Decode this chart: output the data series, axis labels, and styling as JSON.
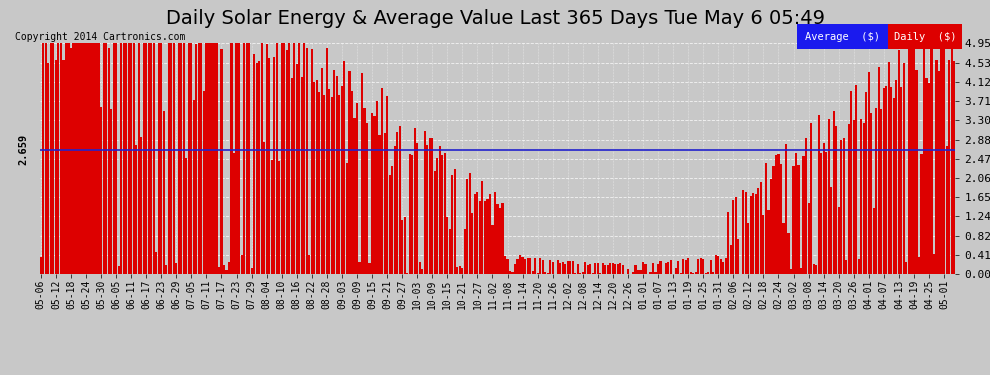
{
  "title": "Daily Solar Energy & Average Value Last 365 Days Tue May 6 05:49",
  "copyright": "Copyright 2014 Cartronics.com",
  "average_value": 2.659,
  "bar_color": "#dd0000",
  "average_line_color": "#2222cc",
  "ymax": 4.95,
  "ymin": 0.0,
  "yticks": [
    0.0,
    0.41,
    0.82,
    1.24,
    1.65,
    2.06,
    2.47,
    2.88,
    3.3,
    3.71,
    4.12,
    4.53,
    4.95
  ],
  "legend_avg_bg": "#1a1aee",
  "legend_daily_bg": "#dd0000",
  "legend_text_color": "#ffffff",
  "background_color": "#c8c8c8",
  "plot_bg_color": "#c8c8c8",
  "title_fontsize": 14,
  "xlabel_dates": [
    "05-06",
    "05-12",
    "05-18",
    "05-24",
    "05-30",
    "06-05",
    "06-11",
    "06-17",
    "06-23",
    "06-29",
    "07-05",
    "07-11",
    "07-17",
    "07-23",
    "07-29",
    "08-04",
    "08-10",
    "08-16",
    "08-22",
    "08-28",
    "09-03",
    "09-09",
    "09-15",
    "09-21",
    "09-27",
    "10-03",
    "10-09",
    "10-15",
    "10-21",
    "10-27",
    "11-02",
    "11-08",
    "11-14",
    "11-20",
    "11-26",
    "12-02",
    "12-08",
    "12-14",
    "12-20",
    "12-26",
    "01-01",
    "01-07",
    "01-13",
    "01-19",
    "01-25",
    "01-31",
    "02-06",
    "02-12",
    "02-18",
    "02-24",
    "03-02",
    "03-08",
    "03-14",
    "03-20",
    "03-26",
    "04-01",
    "04-07",
    "04-13",
    "04-19",
    "04-25",
    "05-01"
  ]
}
